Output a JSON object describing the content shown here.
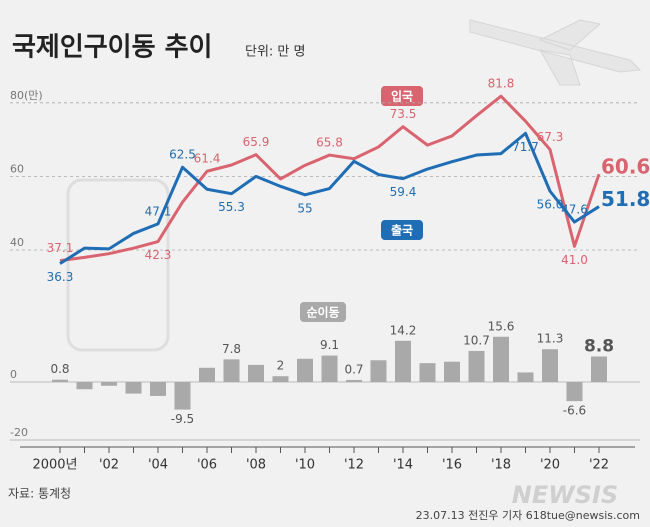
{
  "title": "국제인구이동 추이",
  "unit": "단위: 만 명",
  "chart_data": [
    {
      "type": "line",
      "categories": [
        "2000년",
        null,
        "'02",
        null,
        "'04",
        null,
        "'06",
        null,
        "'08",
        null,
        "'10",
        null,
        "'12",
        null,
        "'14",
        null,
        "'16",
        null,
        "'18",
        null,
        "'20",
        null,
        "'22"
      ],
      "ylim": [
        30,
        86
      ],
      "yticks": [
        40,
        60,
        {
          "value": 80,
          "label": "80(만)"
        }
      ],
      "grid": true,
      "series": [
        {
          "name": "입국",
          "color": "#d9646f",
          "values": [
            37.1,
            38,
            39,
            40.5,
            42.3,
            53,
            61.4,
            63.1,
            65.9,
            59.3,
            63,
            65.8,
            64.8,
            68,
            73.5,
            68.5,
            71,
            76.5,
            81.8,
            75,
            67.3,
            41.0,
            60.6
          ],
          "value_labels": [
            "37.1",
            null,
            null,
            null,
            "42.3",
            null,
            "61.4",
            null,
            "65.9",
            null,
            null,
            "65.8",
            null,
            null,
            "73.5",
            null,
            null,
            null,
            "81.8",
            null,
            "67.3",
            "41.0",
            "60.6"
          ]
        },
        {
          "name": "출국",
          "color": "#1f6db4",
          "values": [
            36.3,
            40.5,
            40.3,
            44.5,
            47.1,
            62.5,
            56.5,
            55.3,
            60,
            57.3,
            55,
            56.7,
            64.1,
            60.5,
            59.4,
            62,
            64,
            65.8,
            66.2,
            71.7,
            56.0,
            47.6,
            51.8
          ],
          "value_labels": [
            "36.3",
            null,
            null,
            null,
            "47.1",
            "62.5",
            null,
            "55.3",
            null,
            null,
            "55",
            null,
            null,
            null,
            "59.4",
            null,
            null,
            null,
            null,
            "71.7",
            "56.0",
            "47.6",
            "51.8"
          ]
        }
      ]
    },
    {
      "type": "bar",
      "name": "순이동",
      "color": "#a9a9a9",
      "ylim": [
        -20,
        20
      ],
      "yticks": [
        -20,
        0
      ],
      "values": [
        0.8,
        -2.5,
        -1.3,
        -4,
        -4.8,
        -9.5,
        4.9,
        7.8,
        5.9,
        2,
        8,
        9.1,
        0.7,
        7.5,
        14.2,
        6.5,
        7,
        10.7,
        15.6,
        3.3,
        11.3,
        -6.6,
        8.8
      ],
      "value_labels": [
        "0.8",
        null,
        null,
        null,
        null,
        "-9.5",
        null,
        "7.8",
        null,
        "2",
        null,
        "9.1",
        "0.7",
        null,
        "14.2",
        null,
        null,
        "10.7",
        "15.6",
        null,
        "11.3",
        "-6.6",
        "8.8"
      ]
    }
  ],
  "source": "자료: 통계청",
  "credit": "23.07.13 전진우 기자 618tue@newsis.com",
  "watermark": "NEWSIS"
}
